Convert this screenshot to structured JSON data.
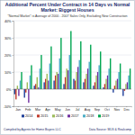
{
  "chart_data": {
    "type": "bar",
    "title": "Additional Percent Under Contract in 14 Days vs Normal Market: Biggest Houses",
    "subtitle": "\"Normal Market\" is Average of 2000 - 2007 Sales Only, Excluding New Construction",
    "categories": [
      "Jan",
      "Feb",
      "Mar",
      "Apr",
      "May",
      "Jun",
      "Jul",
      "Aug",
      "Sep",
      "Oct",
      "Nov",
      "Dec"
    ],
    "series": [
      {
        "name": "2014",
        "color": "#1f3f99",
        "values": [
          -3,
          -5,
          2,
          4,
          5,
          3,
          6,
          4,
          2,
          1,
          -2,
          -4
        ]
      },
      {
        "name": "2015",
        "color": "#c0392b",
        "values": [
          -6,
          -2,
          3,
          6,
          8,
          7,
          5,
          6,
          4,
          3,
          2,
          -1
        ]
      },
      {
        "name": "2016",
        "color": "#9bbb59",
        "values": [
          2,
          4,
          7,
          9,
          10,
          12,
          10,
          9,
          8,
          6,
          5,
          3
        ]
      },
      {
        "name": "2017",
        "color": "#7030a0",
        "values": [
          -4,
          -8,
          1,
          5,
          9,
          11,
          13,
          12,
          10,
          8,
          6,
          4
        ]
      },
      {
        "name": "2018",
        "color": "#4bacc6",
        "values": [
          5,
          8,
          12,
          15,
          18,
          20,
          17,
          16,
          14,
          12,
          10,
          8
        ]
      },
      {
        "name": "2019",
        "color": "#00a651",
        "values": [
          10,
          14,
          20,
          25,
          30,
          34,
          28,
          26,
          22,
          18,
          15,
          12
        ]
      }
    ],
    "ylim": [
      -10,
      40
    ],
    "yticks": [
      {
        "value": -10,
        "label": "-10%"
      },
      {
        "value": 0,
        "label": "0%"
      },
      {
        "value": 10,
        "label": "10%"
      },
      {
        "value": 20,
        "label": "20%"
      },
      {
        "value": 30,
        "label": "30%"
      },
      {
        "value": 40,
        "label": "40%"
      }
    ],
    "grid": true,
    "legend": "bottom",
    "footer_left": "Compiled by Agents for Home Buyers LLC",
    "footer_right": "Data Source: MLS & Realcomp"
  }
}
